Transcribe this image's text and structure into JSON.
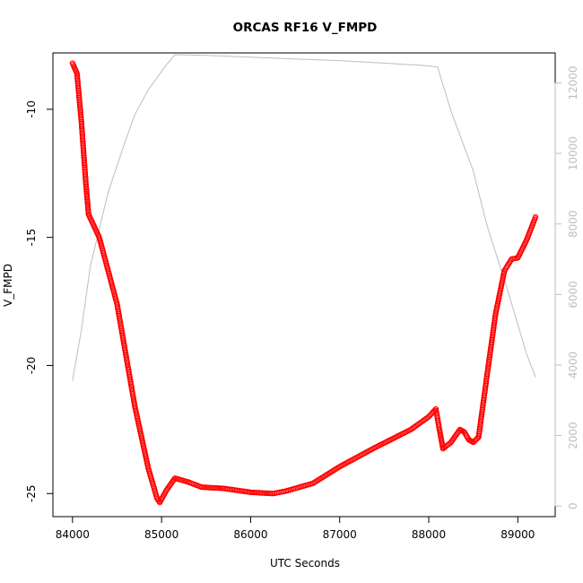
{
  "chart_data": {
    "type": "scatter",
    "title": "ORCAS RF16 V_FMPD",
    "xlabel": "UTC Seconds",
    "ylabel": "V_FMPD",
    "xlim": [
      83780,
      89420
    ],
    "ylim": [
      -25.9,
      -7.8
    ],
    "y2lim": [
      -300,
      12850
    ],
    "xticks": [
      84000,
      85000,
      86000,
      87000,
      88000,
      89000
    ],
    "yticks": [
      -25,
      -20,
      -15,
      -10
    ],
    "y2ticks": [
      0,
      2000,
      4000,
      6000,
      8000,
      10000,
      12000
    ],
    "series": [
      {
        "marker": "open-circle",
        "color": "#ff0000",
        "anchors": [
          [
            84000,
            -8.2
          ],
          [
            84050,
            -8.6
          ],
          [
            84100,
            -10.5
          ],
          [
            84150,
            -12.9
          ],
          [
            84180,
            -14.1
          ],
          [
            84300,
            -15.0
          ],
          [
            84500,
            -17.6
          ],
          [
            84700,
            -21.6
          ],
          [
            84850,
            -24.0
          ],
          [
            84950,
            -25.2
          ],
          [
            84980,
            -25.35
          ],
          [
            85050,
            -24.9
          ],
          [
            85150,
            -24.4
          ],
          [
            85300,
            -24.55
          ],
          [
            85450,
            -24.75
          ],
          [
            85700,
            -24.8
          ],
          [
            86000,
            -24.95
          ],
          [
            86250,
            -25.0
          ],
          [
            86400,
            -24.9
          ],
          [
            86700,
            -24.6
          ],
          [
            87000,
            -23.95
          ],
          [
            87400,
            -23.2
          ],
          [
            87800,
            -22.5
          ],
          [
            88000,
            -22.0
          ],
          [
            88080,
            -21.7
          ],
          [
            88120,
            -22.5
          ],
          [
            88160,
            -23.25
          ],
          [
            88250,
            -23.0
          ],
          [
            88350,
            -22.5
          ],
          [
            88400,
            -22.6
          ],
          [
            88450,
            -22.9
          ],
          [
            88500,
            -23.0
          ],
          [
            88560,
            -22.8
          ],
          [
            88650,
            -20.5
          ],
          [
            88750,
            -18.0
          ],
          [
            88850,
            -16.3
          ],
          [
            88930,
            -15.85
          ],
          [
            89000,
            -15.8
          ],
          [
            89100,
            -15.1
          ],
          [
            89200,
            -14.2
          ]
        ]
      },
      {
        "axis": "right",
        "line": true,
        "color": "#bebebe",
        "points": [
          [
            84000,
            3550
          ],
          [
            84100,
            5000
          ],
          [
            84200,
            6800
          ],
          [
            84400,
            8900
          ],
          [
            84600,
            10400
          ],
          [
            84700,
            11100
          ],
          [
            84850,
            11800
          ],
          [
            85050,
            12500
          ],
          [
            85150,
            12800
          ],
          [
            85500,
            12780
          ],
          [
            86000,
            12730
          ],
          [
            86500,
            12680
          ],
          [
            87000,
            12630
          ],
          [
            87500,
            12560
          ],
          [
            87900,
            12500
          ],
          [
            88000,
            12480
          ],
          [
            88100,
            12450
          ],
          [
            88250,
            11200
          ],
          [
            88500,
            9500
          ],
          [
            88650,
            8000
          ],
          [
            88900,
            6000
          ],
          [
            89100,
            4300
          ],
          [
            89200,
            3650
          ]
        ]
      }
    ]
  }
}
